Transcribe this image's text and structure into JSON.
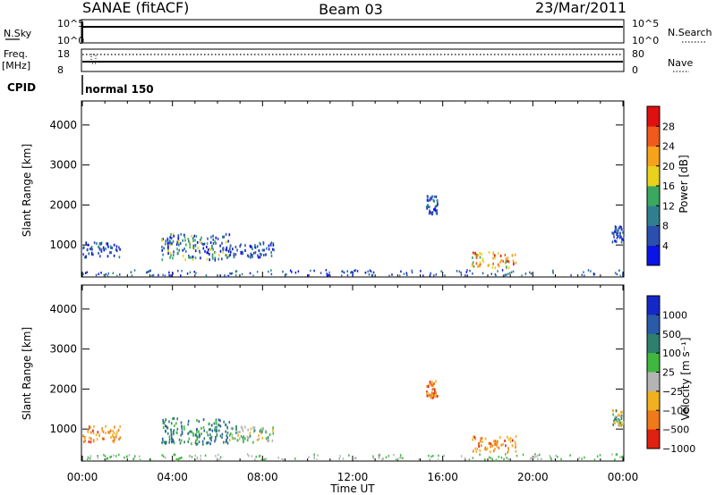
{
  "header": {
    "station": "SANAE (fitACF)",
    "beam": "Beam 03",
    "date": "23/Mar/2011"
  },
  "top_panels": {
    "nsky_label": "N.Sky",
    "nsky_tick_hi": "10^5",
    "nsky_tick_lo": "10^0",
    "nsearch_label": "N.Search",
    "nsearch_tick_hi": "10^5",
    "nsearch_tick_lo": "10^0",
    "freq_label_1": "Freq.",
    "freq_label_2": "[MHz]",
    "freq_tick_hi": "18",
    "freq_tick_lo": "8",
    "nave_label": "Nave",
    "nave_tick_hi": "80",
    "nave_tick_lo": "0",
    "cpid_label": "CPID",
    "cpid_value": "normal 150"
  },
  "chart_data": [
    {
      "type": "heatmap",
      "ylabel": "Slant Range [km]",
      "yticks": [
        "1000",
        "2000",
        "3000",
        "4000"
      ],
      "colorbar_label": "Power [dB]",
      "colorbar_ticks": [
        "4",
        "8",
        "12",
        "16",
        "20",
        "24",
        "28"
      ],
      "colorbar_colors": [
        "#0a14e6",
        "#2a4fb0",
        "#2f7f8f",
        "#3aa860",
        "#e8d21c",
        "#f6a21a",
        "#f05a1a",
        "#e01010"
      ],
      "echo_regions": [
        {
          "t_start": "00:00",
          "t_end": "01:40",
          "range_km": [
            700,
            1100
          ],
          "level": "low"
        },
        {
          "t_start": "03:30",
          "t_end": "06:30",
          "range_km": [
            650,
            1300
          ],
          "level": "low-mid"
        },
        {
          "t_start": "06:30",
          "t_end": "08:30",
          "range_km": [
            700,
            1100
          ],
          "level": "low"
        },
        {
          "t_start": "15:15",
          "t_end": "15:45",
          "range_km": [
            1800,
            2250
          ],
          "level": "low"
        },
        {
          "t_start": "17:15",
          "t_end": "19:15",
          "range_km": [
            450,
            850
          ],
          "level": "mid-high"
        },
        {
          "t_start": "23:30",
          "t_end": "24:00",
          "range_km": [
            1100,
            1500
          ],
          "level": "low"
        }
      ]
    },
    {
      "type": "heatmap",
      "ylabel": "Slant Range [km]",
      "yticks": [
        "1000",
        "2000",
        "3000",
        "4000"
      ],
      "colorbar_label": "Velocity [m s⁻¹]",
      "colorbar_ticks": [
        "1000",
        "500",
        "100",
        "25",
        "−25",
        "−100",
        "−500",
        "−1000"
      ],
      "colorbar_colors": [
        "#1428c8",
        "#2a5aa8",
        "#2f7f6f",
        "#3fb840",
        "#b4b4b4",
        "#f0b020",
        "#f07a1a",
        "#e02010"
      ],
      "echo_regions": [
        {
          "t_start": "00:00",
          "t_end": "01:40",
          "range_km": [
            700,
            1100
          ],
          "level": "negative"
        },
        {
          "t_start": "03:30",
          "t_end": "06:30",
          "range_km": [
            650,
            1300
          ],
          "level": "positive"
        },
        {
          "t_start": "06:30",
          "t_end": "08:30",
          "range_km": [
            700,
            1100
          ],
          "level": "mixed"
        },
        {
          "t_start": "15:15",
          "t_end": "15:45",
          "range_km": [
            1800,
            2250
          ],
          "level": "negative"
        },
        {
          "t_start": "17:15",
          "t_end": "19:15",
          "range_km": [
            450,
            850
          ],
          "level": "negative"
        },
        {
          "t_start": "23:30",
          "t_end": "24:00",
          "range_km": [
            1100,
            1500
          ],
          "level": "mixed"
        }
      ]
    }
  ],
  "xaxis": {
    "ticks": [
      "00:00",
      "04:00",
      "08:00",
      "12:00",
      "16:00",
      "20:00",
      "00:00"
    ],
    "label": "Time UT"
  }
}
